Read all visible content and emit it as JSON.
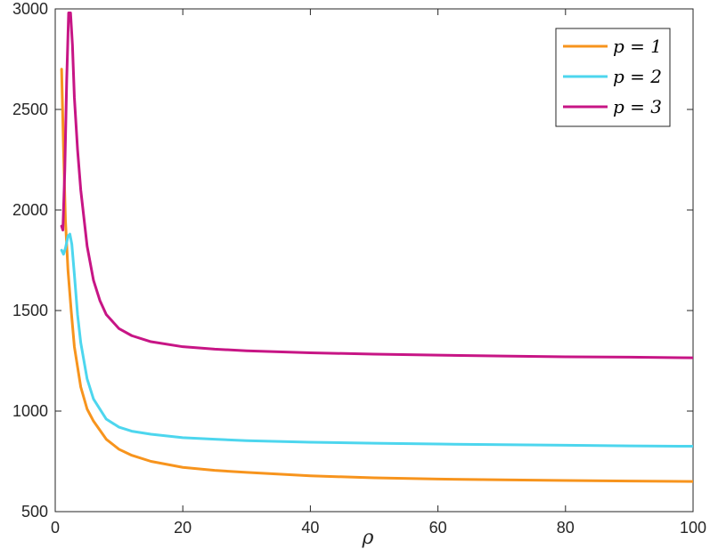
{
  "chart_data": {
    "type": "line",
    "xlabel": "ρ",
    "ylabel": "",
    "title": "",
    "xlim": [
      0,
      100
    ],
    "ylim": [
      500,
      3000
    ],
    "xticks": [
      0,
      20,
      40,
      60,
      80,
      100
    ],
    "yticks": [
      500,
      1000,
      1500,
      2000,
      2500,
      3000
    ],
    "xtick_labels": [
      "0",
      "20",
      "40",
      "60",
      "80",
      "100"
    ],
    "ytick_labels": [
      "500",
      "1000",
      "1500",
      "2000",
      "2500",
      "3000"
    ],
    "grid": false,
    "legend_position": "top-right",
    "series": [
      {
        "name": "p = 1",
        "color": "#f7941d",
        "x": [
          1,
          1.3,
          1.6,
          2,
          2.5,
          3,
          4,
          5,
          6,
          8,
          10,
          12,
          15,
          20,
          25,
          30,
          40,
          50,
          60,
          70,
          80,
          90,
          100
        ],
        "y": [
          2700,
          2300,
          1950,
          1700,
          1500,
          1320,
          1120,
          1010,
          950,
          860,
          810,
          780,
          750,
          720,
          705,
          695,
          678,
          668,
          662,
          658,
          655,
          652,
          650
        ]
      },
      {
        "name": "p = 2",
        "color": "#4dd6ee",
        "x": [
          1,
          1.3,
          1.6,
          2,
          2.3,
          2.6,
          3,
          3.5,
          4,
          5,
          6,
          8,
          10,
          12,
          15,
          20,
          25,
          30,
          40,
          50,
          60,
          70,
          80,
          90,
          100
        ],
        "y": [
          1800,
          1780,
          1810,
          1870,
          1880,
          1830,
          1680,
          1480,
          1340,
          1160,
          1060,
          960,
          920,
          900,
          885,
          868,
          860,
          853,
          845,
          840,
          836,
          833,
          830,
          827,
          825
        ]
      },
      {
        "name": "p = 3",
        "color": "#c71585",
        "x": [
          1,
          1.2,
          1.5,
          1.8,
          2.1,
          2.4,
          2.7,
          3,
          3.5,
          4,
          5,
          6,
          7,
          8,
          10,
          12,
          15,
          20,
          25,
          30,
          40,
          50,
          60,
          70,
          80,
          90,
          100
        ],
        "y": [
          1920,
          1900,
          2200,
          2650,
          2980,
          2980,
          2820,
          2560,
          2300,
          2100,
          1820,
          1650,
          1550,
          1480,
          1410,
          1375,
          1345,
          1320,
          1308,
          1300,
          1290,
          1283,
          1278,
          1274,
          1270,
          1268,
          1265
        ]
      }
    ]
  }
}
